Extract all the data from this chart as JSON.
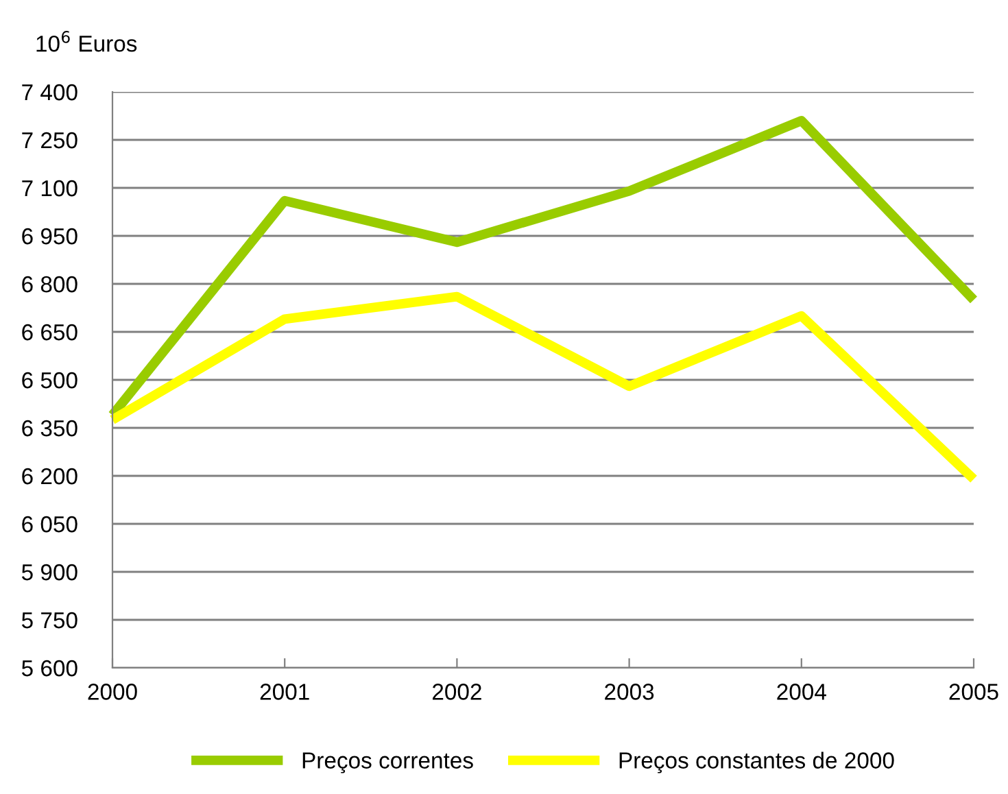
{
  "chart_data": {
    "type": "line",
    "ylabel": "10$^{6}$ Euros",
    "x": [
      2000,
      2001,
      2002,
      2003,
      2004,
      2005
    ],
    "series": [
      {
        "name": "Preços correntes",
        "color": "#99cc00",
        "values": [
          6390,
          7060,
          6930,
          7090,
          7310,
          6750
        ]
      },
      {
        "name": "Preços constantes de 2000",
        "color": "#ffff00",
        "values": [
          6375,
          6690,
          6760,
          6480,
          6700,
          6190
        ]
      }
    ],
    "xlim": [
      2000,
      2005
    ],
    "xticks": [
      2000,
      2001,
      2002,
      2003,
      2004,
      2005
    ],
    "ylim": [
      5600,
      7400
    ],
    "yticks": [
      {
        "value": 5600,
        "label": "5 600"
      },
      {
        "value": 5750,
        "label": "5 750"
      },
      {
        "value": 5900,
        "label": "5 900"
      },
      {
        "value": 6050,
        "label": "6 050"
      },
      {
        "value": 6200,
        "label": "6 200"
      },
      {
        "value": 6350,
        "label": "6 350"
      },
      {
        "value": 6500,
        "label": "6 500"
      },
      {
        "value": 6650,
        "label": "6 650"
      },
      {
        "value": 6800,
        "label": "6 800"
      },
      {
        "value": 6950,
        "label": "6 950"
      },
      {
        "value": 7100,
        "label": "7 100"
      },
      {
        "value": 7250,
        "label": "7 250"
      },
      {
        "value": 7400,
        "label": "7 400"
      }
    ],
    "grid": "y",
    "legend": "bottom",
    "marker": "none",
    "line_style": "solid"
  }
}
